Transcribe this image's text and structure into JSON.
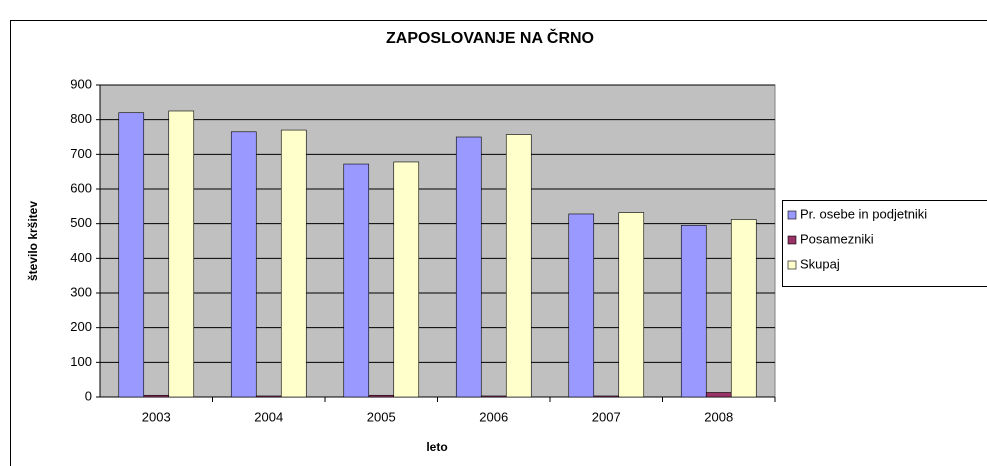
{
  "chart_data": {
    "type": "bar",
    "title": "ZAPOSLOVANJE NA ČRNO",
    "x_label": "leto",
    "y_label": "število kršitev",
    "categories": [
      "2003",
      "2004",
      "2005",
      "2006",
      "2007",
      "2008"
    ],
    "series": [
      {
        "name": "Pr. osebe in podjetniki",
        "color": "#9999ff",
        "values": [
          820,
          765,
          672,
          750,
          528,
          495
        ]
      },
      {
        "name": "Posamezniki",
        "color": "#993366",
        "values": [
          5,
          3,
          5,
          3,
          3,
          13
        ]
      },
      {
        "name": "Skupaj",
        "color": "#ffffcc",
        "values": [
          825,
          770,
          678,
          757,
          532,
          512
        ]
      }
    ],
    "ylim": [
      0,
      900
    ],
    "yticks": [
      0,
      100,
      200,
      300,
      400,
      500,
      600,
      700,
      800,
      900
    ],
    "grid": true,
    "legend": "right"
  }
}
